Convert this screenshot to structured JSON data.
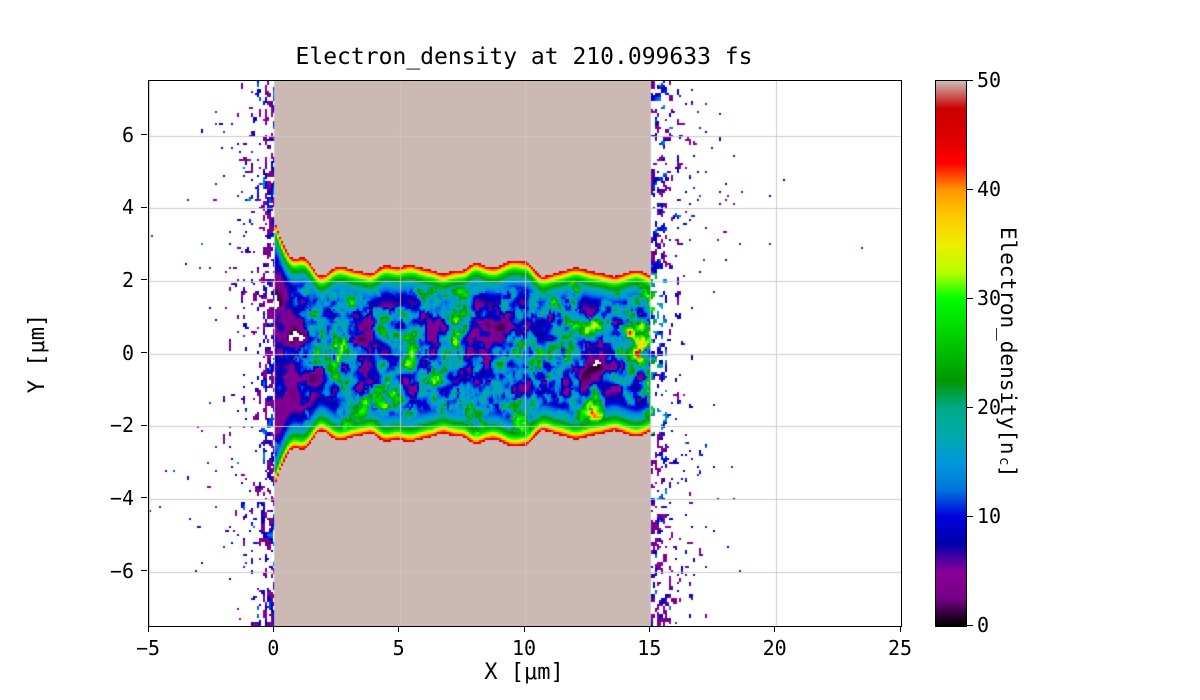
{
  "figure": {
    "background": "#ffffff"
  },
  "chart_data": {
    "type": "heatmap",
    "title": "Electron_density at 210.099633 fs",
    "xlabel": "X [μm]",
    "ylabel": "Y [μm]",
    "xlim": [
      -5,
      25
    ],
    "ylim": [
      -7.5,
      7.5
    ],
    "x_ticks": [
      -5,
      0,
      5,
      10,
      15,
      20,
      25
    ],
    "x_tick_labels": [
      "−5",
      "0",
      "5",
      "10",
      "15",
      "20",
      "25"
    ],
    "y_ticks": [
      -6,
      -4,
      -2,
      0,
      2,
      4,
      6
    ],
    "y_tick_labels": [
      "−6",
      "−4",
      "−2",
      "0",
      "2",
      "4",
      "6"
    ],
    "grid": true,
    "grid_color": "#c8c8c8",
    "colorbar": {
      "label_main": "Electron_density[n",
      "label_sub": "c",
      "label_close": "]",
      "ticks": [
        0,
        10,
        20,
        30,
        40,
        50
      ],
      "tick_labels": [
        "0",
        "10",
        "20",
        "30",
        "40",
        "50"
      ],
      "vmin": 0,
      "vmax": 50,
      "colormap": "nipy_spectral",
      "stops": [
        "#000000",
        "#770088",
        "#880099",
        "#0000AA",
        "#0000DD",
        "#0077DD",
        "#0099DD",
        "#00AAAA",
        "#00AA88",
        "#009900",
        "#00BB00",
        "#00DD00",
        "#00FF00",
        "#BBFF00",
        "#EEEE00",
        "#FFCC00",
        "#FF9900",
        "#FF0000",
        "#DD0000",
        "#CC0000",
        "#CDB9B4"
      ]
    },
    "features": {
      "slab": {
        "x_range": [
          0,
          15
        ],
        "value": 50,
        "description": "overdense target slab rendered at saturation (top of colormap)"
      },
      "channel": {
        "y_half_width": 2.3,
        "entrance_flare": 1.3,
        "wall_rim_value": 47,
        "turbulence_max": 48,
        "description": "laser-drilled channel filled with turbulent plasma, density 0-48 nc, red high-density rim along walls"
      },
      "blowoff": {
        "front_x": [
          -5,
          0
        ],
        "rear_x": [
          15,
          25
        ],
        "value_range": [
          2,
          14
        ],
        "description": "sparse low-density expanding plasma speckle outside the target, densest near the slab surfaces"
      },
      "seed": 42
    }
  }
}
